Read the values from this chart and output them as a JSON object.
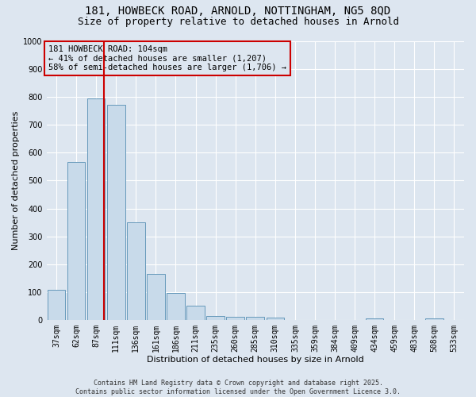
{
  "title_line1": "181, HOWBECK ROAD, ARNOLD, NOTTINGHAM, NG5 8QD",
  "title_line2": "Size of property relative to detached houses in Arnold",
  "xlabel": "Distribution of detached houses by size in Arnold",
  "ylabel": "Number of detached properties",
  "bar_labels": [
    "37sqm",
    "62sqm",
    "87sqm",
    "111sqm",
    "136sqm",
    "161sqm",
    "186sqm",
    "211sqm",
    "235sqm",
    "260sqm",
    "285sqm",
    "310sqm",
    "335sqm",
    "359sqm",
    "384sqm",
    "409sqm",
    "434sqm",
    "459sqm",
    "483sqm",
    "508sqm",
    "533sqm"
  ],
  "bar_values": [
    110,
    565,
    793,
    770,
    350,
    165,
    96,
    52,
    15,
    11,
    11,
    8,
    0,
    0,
    0,
    0,
    7,
    0,
    0,
    7,
    0
  ],
  "bar_color": "#c8daea",
  "bar_edge_color": "#6699bb",
  "vline_x_idx": 2.41,
  "vline_color": "#cc0000",
  "annotation_text": "181 HOWBECK ROAD: 104sqm\n← 41% of detached houses are smaller (1,207)\n58% of semi-detached houses are larger (1,706) →",
  "annotation_box_color": "#cc0000",
  "annotation_text_color": "#000000",
  "ylim": [
    0,
    1000
  ],
  "yticks": [
    0,
    100,
    200,
    300,
    400,
    500,
    600,
    700,
    800,
    900,
    1000
  ],
  "background_color": "#dde6f0",
  "footer_line1": "Contains HM Land Registry data © Crown copyright and database right 2025.",
  "footer_line2": "Contains public sector information licensed under the Open Government Licence 3.0.",
  "grid_color": "#ffffff",
  "title_fontsize": 10,
  "subtitle_fontsize": 9,
  "axis_label_fontsize": 8,
  "tick_fontsize": 7,
  "annotation_fontsize": 7.5,
  "footer_fontsize": 6
}
